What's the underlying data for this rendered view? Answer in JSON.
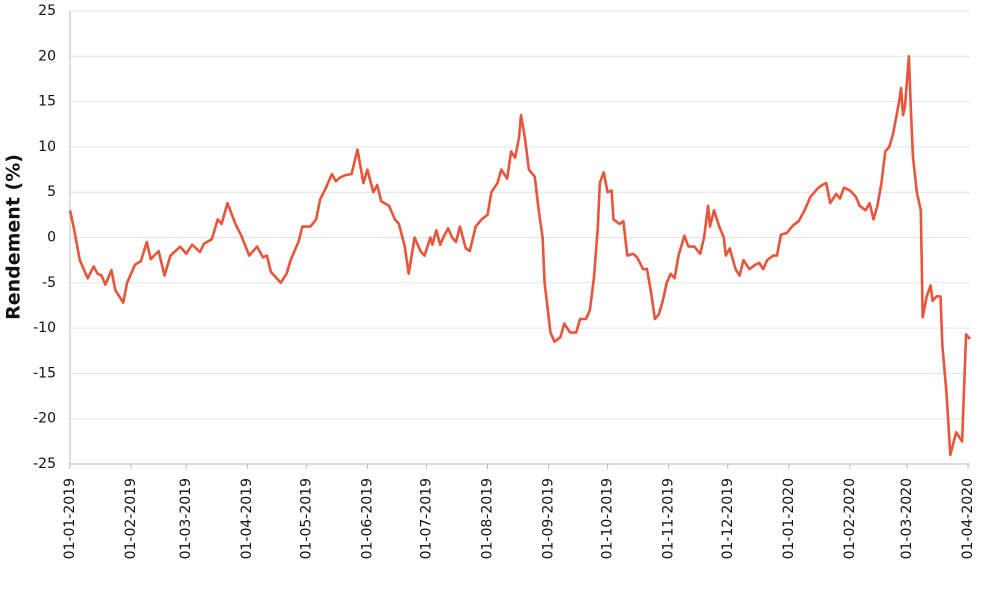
{
  "chart_data": {
    "type": "line",
    "ylabel": "Rendement (%)",
    "x": [
      "01-01-2019",
      "03-01-2019",
      "06-01-2019",
      "10-01-2019",
      "13-01-2019",
      "15-01-2019",
      "17-01-2019",
      "19-01-2019",
      "22-01-2019",
      "24-01-2019",
      "28-01-2019",
      "30-01-2019",
      "03-02-2019",
      "06-02-2019",
      "09-02-2019",
      "11-02-2019",
      "15-02-2019",
      "18-02-2019",
      "21-02-2019",
      "26-02-2019",
      "01-03-2019",
      "04-03-2019",
      "08-03-2019",
      "10-03-2019",
      "14-03-2019",
      "17-03-2019",
      "19-03-2019",
      "22-03-2019",
      "26-03-2019",
      "29-03-2019",
      "02-04-2019",
      "06-04-2019",
      "09-04-2019",
      "11-04-2019",
      "13-04-2019",
      "18-04-2019",
      "21-04-2019",
      "23-04-2019",
      "27-04-2019",
      "29-04-2019",
      "03-05-2019",
      "06-05-2019",
      "08-05-2019",
      "11-05-2019",
      "14-05-2019",
      "16-05-2019",
      "18-05-2019",
      "21-05-2019",
      "24-05-2019",
      "27-05-2019",
      "30-05-2019",
      "01-06-2019",
      "04-06-2019",
      "06-06-2019",
      "08-06-2019",
      "12-06-2019",
      "15-06-2019",
      "17-06-2019",
      "20-06-2019",
      "22-06-2019",
      "25-06-2019",
      "28-06-2019",
      "30-06-2019",
      "03-07-2019",
      "04-07-2019",
      "06-07-2019",
      "08-07-2019",
      "10-07-2019",
      "12-07-2019",
      "14-07-2019",
      "16-07-2019",
      "18-07-2019",
      "21-07-2019",
      "23-07-2019",
      "26-07-2019",
      "29-07-2019",
      "01-08-2019",
      "03-08-2019",
      "06-08-2019",
      "08-08-2019",
      "11-08-2019",
      "13-08-2019",
      "15-08-2019",
      "17-08-2019",
      "18-08-2019",
      "20-08-2019",
      "22-08-2019",
      "25-08-2019",
      "27-08-2019",
      "29-08-2019",
      "30-08-2019",
      "02-09-2019",
      "04-09-2019",
      "07-09-2019",
      "09-09-2019",
      "12-09-2019",
      "15-09-2019",
      "17-09-2019",
      "20-09-2019",
      "22-09-2019",
      "24-09-2019",
      "26-09-2019",
      "27-09-2019",
      "29-09-2019",
      "01-10-2019",
      "03-10-2019",
      "04-10-2019",
      "07-10-2019",
      "09-10-2019",
      "11-10-2019",
      "14-10-2019",
      "16-10-2019",
      "19-10-2019",
      "21-10-2019",
      "23-10-2019",
      "25-10-2019",
      "27-10-2019",
      "29-10-2019",
      "31-10-2019",
      "02-11-2019",
      "04-11-2019",
      "06-11-2019",
      "09-11-2019",
      "11-11-2019",
      "14-11-2019",
      "17-11-2019",
      "19-11-2019",
      "21-11-2019",
      "22-11-2019",
      "24-11-2019",
      "27-11-2019",
      "29-11-2019",
      "30-11-2019",
      "02-12-2019",
      "05-12-2019",
      "07-12-2019",
      "09-12-2019",
      "12-12-2019",
      "15-12-2019",
      "17-12-2019",
      "19-12-2019",
      "21-12-2019",
      "24-12-2019",
      "26-12-2019",
      "28-12-2019",
      "31-12-2019",
      "03-01-2020",
      "06-01-2020",
      "09-01-2020",
      "12-01-2020",
      "16-01-2020",
      "18-01-2020",
      "20-01-2020",
      "22-01-2020",
      "25-01-2020",
      "27-01-2020",
      "29-01-2020",
      "01-02-2020",
      "04-02-2020",
      "06-02-2020",
      "09-02-2020",
      "11-02-2020",
      "13-02-2020",
      "15-02-2020",
      "17-02-2020",
      "19-02-2020",
      "21-02-2020",
      "23-02-2020",
      "26-02-2020",
      "27-02-2020",
      "28-02-2020",
      "29-02-2020",
      "02-03-2020",
      "03-03-2020",
      "04-03-2020",
      "06-03-2020",
      "08-03-2020",
      "09-03-2020",
      "11-03-2020",
      "13-03-2020",
      "14-03-2020",
      "16-03-2020",
      "18-03-2020",
      "19-03-2020",
      "21-03-2020",
      "23-03-2020",
      "26-03-2020",
      "29-03-2020",
      "31-03-2020",
      "02-04-2020"
    ],
    "values": [
      3,
      1,
      -2.5,
      -4.5,
      -3.2,
      -4,
      -4.2,
      -5.2,
      -3.6,
      -5.8,
      -7.2,
      -5,
      -3,
      -2.6,
      -0.5,
      -2.4,
      -1.5,
      -4.2,
      -2,
      -1,
      -1.8,
      -0.8,
      -1.6,
      -0.7,
      -0.2,
      2,
      1.5,
      3.8,
      1.5,
      0.2,
      -2,
      -1,
      -2.2,
      -2,
      -3.8,
      -5,
      -4,
      -2.5,
      -0.5,
      1.2,
      1.2,
      2,
      4.2,
      5.5,
      7,
      6.2,
      6.6,
      6.9,
      7,
      9.7,
      6,
      7.5,
      5,
      5.8,
      4,
      3.5,
      2,
      1.5,
      -1,
      -4,
      0,
      -1.5,
      -2,
      0,
      -0.8,
      0.8,
      -0.8,
      0.2,
      1,
      0,
      -0.5,
      1.2,
      -1.2,
      -1.5,
      1.2,
      2,
      2.5,
      5,
      6,
      7.5,
      6.5,
      9.5,
      8.8,
      11,
      13.5,
      11,
      7.5,
      6.7,
      3,
      0,
      -5,
      -10.5,
      -11.5,
      -11,
      -9.5,
      -10.5,
      -10.5,
      -9,
      -9,
      -8,
      -4.5,
      1,
      6,
      7.2,
      5,
      5.2,
      2,
      1.5,
      1.8,
      -2,
      -1.8,
      -2.2,
      -3.5,
      -3.5,
      -6,
      -9,
      -8.5,
      -7,
      -5,
      -4,
      -4.5,
      -2,
      0.2,
      -1,
      -1,
      -1.8,
      0,
      3.5,
      1.2,
      3,
      1,
      0,
      -2,
      -1.2,
      -3.5,
      -4.2,
      -2.5,
      -3.5,
      -3,
      -2.8,
      -3.5,
      -2.5,
      -2,
      -2,
      0.3,
      0.5,
      1.3,
      1.8,
      3,
      4.5,
      5.5,
      5.8,
      6,
      3.8,
      4.8,
      4.3,
      5.5,
      5.2,
      4.5,
      3.5,
      3,
      3.8,
      2,
      3.5,
      6,
      9.5,
      10,
      11.5,
      15,
      16.5,
      13.5,
      14.5,
      20,
      14,
      9,
      5,
      3,
      -8.8,
      -6.5,
      -5.3,
      -7,
      -6.5,
      -6.5,
      -12,
      -17,
      -24,
      -21.5,
      -22.5,
      -10.7,
      -11.2
    ],
    "color": "#e8553a",
    "xlim": [
      "01-01-2019",
      "02-04-2020"
    ],
    "xticks": [
      "01-01-2019",
      "01-02-2019",
      "01-03-2019",
      "01-04-2019",
      "01-05-2019",
      "01-06-2019",
      "01-07-2019",
      "01-08-2019",
      "01-09-2019",
      "01-10-2019",
      "01-11-2019",
      "01-12-2019",
      "01-01-2020",
      "01-02-2020",
      "01-03-2020",
      "01-04-2020"
    ],
    "ylim": [
      -25,
      25
    ],
    "yticks": [
      -25,
      -20,
      -15,
      -10,
      -5,
      0,
      5,
      10,
      15,
      20,
      25
    ],
    "grid": true
  }
}
